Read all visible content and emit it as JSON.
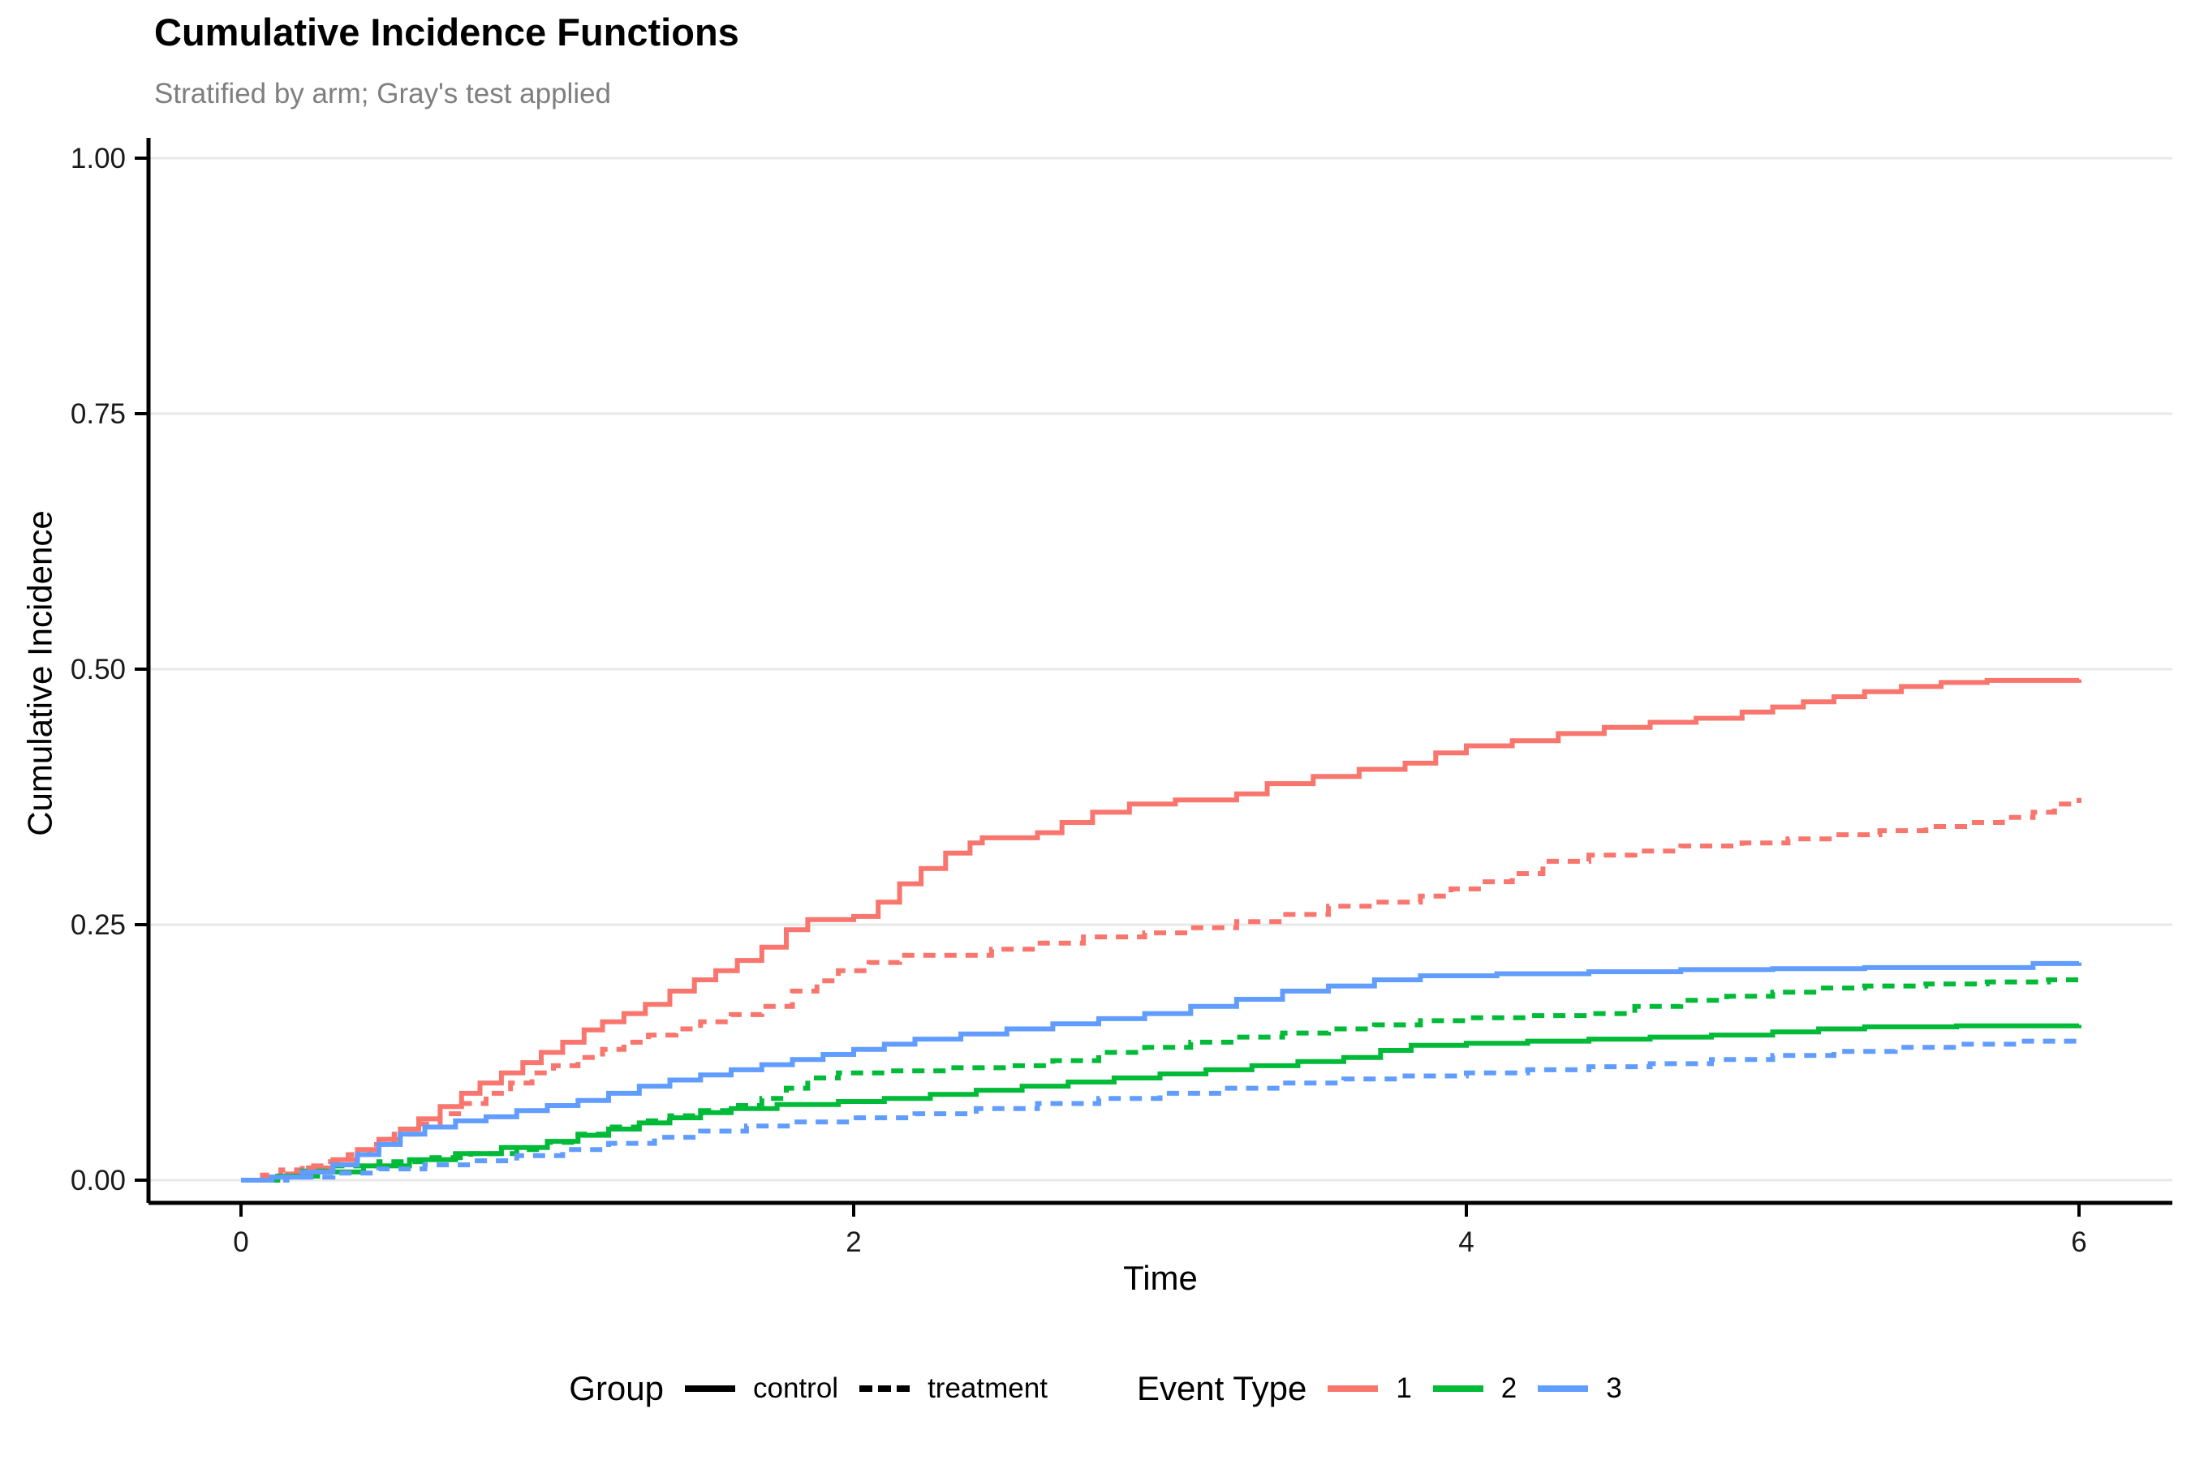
{
  "title": "Cumulative Incidence Functions",
  "subtitle": "Stratified by arm; Gray's test applied",
  "legend": {
    "group": {
      "title": "Group",
      "items": [
        {
          "label": "control",
          "style": "solid"
        },
        {
          "label": "treatment",
          "style": "dashed"
        }
      ]
    },
    "event_type": {
      "title": "Event Type",
      "items": [
        {
          "label": "1",
          "color": "#F8766D"
        },
        {
          "label": "2",
          "color": "#00BA38"
        },
        {
          "label": "3",
          "color": "#619CFF"
        }
      ]
    }
  },
  "chart_data": {
    "type": "line",
    "subtype": "step-function-cumulative-incidence",
    "title": "Cumulative Incidence Functions",
    "subtitle": "Stratified by arm; Gray's test applied",
    "xlabel": "Time",
    "ylabel": "Cumulative Incidence",
    "xlim": [
      0,
      6
    ],
    "ylim": [
      0,
      1
    ],
    "x_ticks": [
      {
        "value": 0,
        "label": "0"
      },
      {
        "value": 2,
        "label": "2"
      },
      {
        "value": 4,
        "label": "4"
      },
      {
        "value": 6,
        "label": "6"
      }
    ],
    "y_ticks": [
      {
        "value": 0.0,
        "label": "0.00"
      },
      {
        "value": 0.25,
        "label": "0.25"
      },
      {
        "value": 0.5,
        "label": "0.50"
      },
      {
        "value": 0.75,
        "label": "0.75"
      },
      {
        "value": 1.0,
        "label": "1.00"
      }
    ],
    "grid": "horizontal-major-only",
    "grid_color": "#E8E8E8",
    "legend_position": "bottom",
    "series": [
      {
        "name": "control event 1",
        "group": "control",
        "event_type": "1",
        "color": "#F8766D",
        "dash": "solid",
        "points": [
          [
            0,
            0
          ],
          [
            0.08,
            0.003
          ],
          [
            0.15,
            0.006
          ],
          [
            0.22,
            0.012
          ],
          [
            0.3,
            0.02
          ],
          [
            0.38,
            0.03
          ],
          [
            0.45,
            0.04
          ],
          [
            0.52,
            0.05
          ],
          [
            0.58,
            0.06
          ],
          [
            0.65,
            0.072
          ],
          [
            0.72,
            0.085
          ],
          [
            0.78,
            0.095
          ],
          [
            0.85,
            0.105
          ],
          [
            0.92,
            0.115
          ],
          [
            0.98,
            0.125
          ],
          [
            1.05,
            0.135
          ],
          [
            1.12,
            0.147
          ],
          [
            1.18,
            0.155
          ],
          [
            1.25,
            0.163
          ],
          [
            1.32,
            0.172
          ],
          [
            1.4,
            0.185
          ],
          [
            1.48,
            0.196
          ],
          [
            1.55,
            0.205
          ],
          [
            1.62,
            0.215
          ],
          [
            1.7,
            0.228
          ],
          [
            1.78,
            0.245
          ],
          [
            1.85,
            0.255
          ],
          [
            2.0,
            0.258
          ],
          [
            2.08,
            0.272
          ],
          [
            2.15,
            0.29
          ],
          [
            2.22,
            0.305
          ],
          [
            2.3,
            0.32
          ],
          [
            2.38,
            0.33
          ],
          [
            2.42,
            0.335
          ],
          [
            2.6,
            0.34
          ],
          [
            2.68,
            0.35
          ],
          [
            2.78,
            0.36
          ],
          [
            2.9,
            0.368
          ],
          [
            3.05,
            0.372
          ],
          [
            3.25,
            0.378
          ],
          [
            3.35,
            0.388
          ],
          [
            3.5,
            0.395
          ],
          [
            3.65,
            0.402
          ],
          [
            3.8,
            0.408
          ],
          [
            3.9,
            0.418
          ],
          [
            4.0,
            0.425
          ],
          [
            4.15,
            0.43
          ],
          [
            4.3,
            0.437
          ],
          [
            4.45,
            0.443
          ],
          [
            4.6,
            0.448
          ],
          [
            4.75,
            0.452
          ],
          [
            4.9,
            0.458
          ],
          [
            5.0,
            0.463
          ],
          [
            5.1,
            0.468
          ],
          [
            5.2,
            0.473
          ],
          [
            5.3,
            0.478
          ],
          [
            5.42,
            0.483
          ],
          [
            5.55,
            0.487
          ],
          [
            5.7,
            0.489
          ],
          [
            6.0,
            0.49
          ]
        ]
      },
      {
        "name": "treatment event 1",
        "group": "treatment",
        "event_type": "1",
        "color": "#F8766D",
        "dash": "dashed",
        "points": [
          [
            0,
            0
          ],
          [
            0.07,
            0.005
          ],
          [
            0.13,
            0.01
          ],
          [
            0.2,
            0.014
          ],
          [
            0.28,
            0.018
          ],
          [
            0.35,
            0.025
          ],
          [
            0.42,
            0.035
          ],
          [
            0.5,
            0.045
          ],
          [
            0.57,
            0.055
          ],
          [
            0.65,
            0.065
          ],
          [
            0.72,
            0.075
          ],
          [
            0.8,
            0.085
          ],
          [
            0.88,
            0.095
          ],
          [
            0.95,
            0.105
          ],
          [
            1.02,
            0.112
          ],
          [
            1.1,
            0.12
          ],
          [
            1.18,
            0.128
          ],
          [
            1.25,
            0.135
          ],
          [
            1.33,
            0.142
          ],
          [
            1.42,
            0.148
          ],
          [
            1.5,
            0.155
          ],
          [
            1.6,
            0.162
          ],
          [
            1.7,
            0.17
          ],
          [
            1.8,
            0.185
          ],
          [
            1.88,
            0.195
          ],
          [
            1.95,
            0.205
          ],
          [
            2.05,
            0.213
          ],
          [
            2.15,
            0.22
          ],
          [
            2.45,
            0.226
          ],
          [
            2.6,
            0.232
          ],
          [
            2.75,
            0.238
          ],
          [
            2.95,
            0.242
          ],
          [
            3.1,
            0.247
          ],
          [
            3.25,
            0.253
          ],
          [
            3.4,
            0.26
          ],
          [
            3.55,
            0.268
          ],
          [
            3.7,
            0.272
          ],
          [
            3.85,
            0.278
          ],
          [
            3.95,
            0.285
          ],
          [
            4.05,
            0.292
          ],
          [
            4.15,
            0.3
          ],
          [
            4.25,
            0.312
          ],
          [
            4.4,
            0.318
          ],
          [
            4.55,
            0.322
          ],
          [
            4.7,
            0.327
          ],
          [
            4.9,
            0.33
          ],
          [
            5.05,
            0.334
          ],
          [
            5.2,
            0.338
          ],
          [
            5.35,
            0.342
          ],
          [
            5.5,
            0.346
          ],
          [
            5.65,
            0.35
          ],
          [
            5.75,
            0.355
          ],
          [
            5.85,
            0.36
          ],
          [
            5.92,
            0.368
          ],
          [
            6.0,
            0.374
          ]
        ]
      },
      {
        "name": "control event 2",
        "group": "control",
        "event_type": "2",
        "color": "#00BA38",
        "dash": "solid",
        "points": [
          [
            0,
            0
          ],
          [
            0.12,
            0.004
          ],
          [
            0.25,
            0.008
          ],
          [
            0.4,
            0.014
          ],
          [
            0.55,
            0.02
          ],
          [
            0.7,
            0.026
          ],
          [
            0.85,
            0.032
          ],
          [
            1.0,
            0.038
          ],
          [
            1.1,
            0.044
          ],
          [
            1.2,
            0.05
          ],
          [
            1.3,
            0.056
          ],
          [
            1.4,
            0.061
          ],
          [
            1.5,
            0.066
          ],
          [
            1.6,
            0.07
          ],
          [
            1.75,
            0.074
          ],
          [
            1.95,
            0.077
          ],
          [
            2.1,
            0.08
          ],
          [
            2.25,
            0.084
          ],
          [
            2.4,
            0.088
          ],
          [
            2.55,
            0.092
          ],
          [
            2.7,
            0.096
          ],
          [
            2.85,
            0.1
          ],
          [
            3.0,
            0.104
          ],
          [
            3.15,
            0.108
          ],
          [
            3.3,
            0.112
          ],
          [
            3.45,
            0.116
          ],
          [
            3.6,
            0.12
          ],
          [
            3.72,
            0.127
          ],
          [
            3.82,
            0.132
          ],
          [
            4.0,
            0.134
          ],
          [
            4.2,
            0.136
          ],
          [
            4.4,
            0.138
          ],
          [
            4.6,
            0.14
          ],
          [
            4.8,
            0.142
          ],
          [
            5.0,
            0.145
          ],
          [
            5.15,
            0.148
          ],
          [
            5.3,
            0.15
          ],
          [
            5.6,
            0.151
          ],
          [
            6.0,
            0.152
          ]
        ]
      },
      {
        "name": "treatment event 2",
        "group": "treatment",
        "event_type": "2",
        "color": "#00BA38",
        "dash": "dashed",
        "points": [
          [
            0,
            0
          ],
          [
            0.1,
            0.004
          ],
          [
            0.2,
            0.009
          ],
          [
            0.3,
            0.014
          ],
          [
            0.45,
            0.018
          ],
          [
            0.6,
            0.022
          ],
          [
            0.75,
            0.026
          ],
          [
            0.9,
            0.03
          ],
          [
            1.0,
            0.037
          ],
          [
            1.1,
            0.045
          ],
          [
            1.2,
            0.052
          ],
          [
            1.3,
            0.058
          ],
          [
            1.4,
            0.063
          ],
          [
            1.5,
            0.068
          ],
          [
            1.6,
            0.073
          ],
          [
            1.7,
            0.08
          ],
          [
            1.78,
            0.09
          ],
          [
            1.85,
            0.1
          ],
          [
            1.95,
            0.105
          ],
          [
            2.1,
            0.107
          ],
          [
            2.3,
            0.11
          ],
          [
            2.5,
            0.112
          ],
          [
            2.65,
            0.117
          ],
          [
            2.8,
            0.125
          ],
          [
            2.95,
            0.13
          ],
          [
            3.1,
            0.135
          ],
          [
            3.25,
            0.14
          ],
          [
            3.4,
            0.144
          ],
          [
            3.55,
            0.148
          ],
          [
            3.7,
            0.152
          ],
          [
            3.85,
            0.156
          ],
          [
            4.0,
            0.159
          ],
          [
            4.2,
            0.161
          ],
          [
            4.4,
            0.163
          ],
          [
            4.55,
            0.17
          ],
          [
            4.7,
            0.176
          ],
          [
            4.85,
            0.18
          ],
          [
            5.0,
            0.184
          ],
          [
            5.15,
            0.188
          ],
          [
            5.3,
            0.19
          ],
          [
            5.5,
            0.192
          ],
          [
            5.7,
            0.194
          ],
          [
            5.9,
            0.196
          ],
          [
            6.0,
            0.2
          ]
        ]
      },
      {
        "name": "control event 3",
        "group": "control",
        "event_type": "3",
        "color": "#619CFF",
        "dash": "solid",
        "points": [
          [
            0,
            0
          ],
          [
            0.1,
            0.003
          ],
          [
            0.2,
            0.008
          ],
          [
            0.3,
            0.015
          ],
          [
            0.38,
            0.025
          ],
          [
            0.45,
            0.035
          ],
          [
            0.52,
            0.045
          ],
          [
            0.6,
            0.052
          ],
          [
            0.7,
            0.058
          ],
          [
            0.8,
            0.062
          ],
          [
            0.9,
            0.068
          ],
          [
            1.0,
            0.073
          ],
          [
            1.1,
            0.078
          ],
          [
            1.2,
            0.085
          ],
          [
            1.3,
            0.092
          ],
          [
            1.4,
            0.098
          ],
          [
            1.5,
            0.103
          ],
          [
            1.6,
            0.108
          ],
          [
            1.7,
            0.113
          ],
          [
            1.8,
            0.118
          ],
          [
            1.9,
            0.123
          ],
          [
            2.0,
            0.128
          ],
          [
            2.1,
            0.133
          ],
          [
            2.2,
            0.138
          ],
          [
            2.35,
            0.143
          ],
          [
            2.5,
            0.148
          ],
          [
            2.65,
            0.153
          ],
          [
            2.8,
            0.158
          ],
          [
            2.95,
            0.163
          ],
          [
            3.1,
            0.17
          ],
          [
            3.25,
            0.177
          ],
          [
            3.4,
            0.185
          ],
          [
            3.55,
            0.19
          ],
          [
            3.7,
            0.196
          ],
          [
            3.85,
            0.2
          ],
          [
            4.1,
            0.202
          ],
          [
            4.4,
            0.204
          ],
          [
            4.7,
            0.206
          ],
          [
            5.0,
            0.207
          ],
          [
            5.3,
            0.208
          ],
          [
            5.6,
            0.208
          ],
          [
            5.85,
            0.212
          ],
          [
            6.0,
            0.213
          ]
        ]
      },
      {
        "name": "treatment event 3",
        "group": "treatment",
        "event_type": "3",
        "color": "#619CFF",
        "dash": "dashed",
        "points": [
          [
            0,
            0
          ],
          [
            0.15,
            0.003
          ],
          [
            0.3,
            0.007
          ],
          [
            0.45,
            0.011
          ],
          [
            0.6,
            0.015
          ],
          [
            0.75,
            0.019
          ],
          [
            0.9,
            0.024
          ],
          [
            1.05,
            0.03
          ],
          [
            1.2,
            0.036
          ],
          [
            1.35,
            0.042
          ],
          [
            1.5,
            0.048
          ],
          [
            1.65,
            0.053
          ],
          [
            1.8,
            0.057
          ],
          [
            2.0,
            0.061
          ],
          [
            2.2,
            0.065
          ],
          [
            2.4,
            0.07
          ],
          [
            2.6,
            0.075
          ],
          [
            2.8,
            0.08
          ],
          [
            3.0,
            0.085
          ],
          [
            3.2,
            0.09
          ],
          [
            3.4,
            0.095
          ],
          [
            3.6,
            0.099
          ],
          [
            3.8,
            0.102
          ],
          [
            4.0,
            0.105
          ],
          [
            4.2,
            0.108
          ],
          [
            4.4,
            0.111
          ],
          [
            4.6,
            0.114
          ],
          [
            4.8,
            0.118
          ],
          [
            5.0,
            0.122
          ],
          [
            5.2,
            0.126
          ],
          [
            5.4,
            0.13
          ],
          [
            5.6,
            0.133
          ],
          [
            5.8,
            0.136
          ],
          [
            6.0,
            0.14
          ]
        ]
      }
    ]
  }
}
